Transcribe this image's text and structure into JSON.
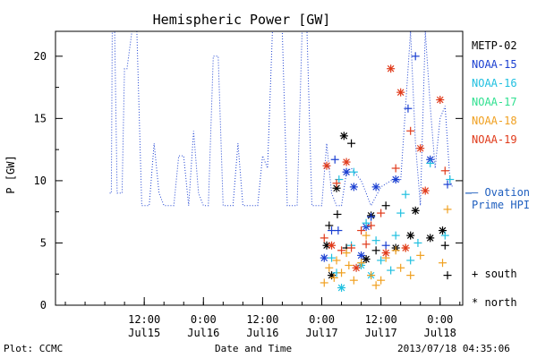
{
  "chart_data": {
    "type": "scatter",
    "title": "Hemispheric Power [GW]",
    "ylabel": "P [GW]",
    "xlabel": "Date and Time",
    "ylim": [
      0,
      22
    ],
    "xlim": [
      "2013-07-14T18:00",
      "2013-07-18T04:35"
    ],
    "y_ticks": [
      0,
      5,
      10,
      15,
      20
    ],
    "x_ticks": [
      {
        "time": "2013-07-15T12:00",
        "top": "12:00",
        "bottom": "Jul15"
      },
      {
        "time": "2013-07-16T00:00",
        "top": "0:00",
        "bottom": "Jul16"
      },
      {
        "time": "2013-07-16T12:00",
        "top": "12:00",
        "bottom": "Jul16"
      },
      {
        "time": "2013-07-17T00:00",
        "top": "0:00",
        "bottom": "Jul17"
      },
      {
        "time": "2013-07-17T12:00",
        "top": "12:00",
        "bottom": "Jul17"
      },
      {
        "time": "2013-07-18T00:00",
        "top": "0:00",
        "bottom": "Jul18"
      }
    ],
    "ovation_level": 9,
    "ovation_label_line1": "— Ovation",
    "ovation_label_line2": "Prime HPI",
    "series": [
      {
        "name": "METP-02",
        "color": "#000000",
        "type": "markers",
        "points": [
          [
            "2013-07-17T01:00",
            4.8,
            "star"
          ],
          [
            "2013-07-17T01:30",
            6.4,
            "plus"
          ],
          [
            "2013-07-17T02:00",
            2.4,
            "star"
          ],
          [
            "2013-07-17T03:00",
            9.4,
            "star"
          ],
          [
            "2013-07-17T03:10",
            7.3,
            "plus"
          ],
          [
            "2013-07-17T04:30",
            13.6,
            "star"
          ],
          [
            "2013-07-17T05:00",
            4.6,
            "plus"
          ],
          [
            "2013-07-17T06:00",
            13.0,
            "plus"
          ],
          [
            "2013-07-17T09:00",
            3.7,
            "star"
          ],
          [
            "2013-07-17T10:00",
            7.2,
            "star"
          ],
          [
            "2013-07-17T11:00",
            4.4,
            "plus"
          ],
          [
            "2013-07-17T13:00",
            8.0,
            "plus"
          ],
          [
            "2013-07-17T15:00",
            4.6,
            "star"
          ],
          [
            "2013-07-17T18:00",
            5.6,
            "star"
          ],
          [
            "2013-07-17T19:00",
            7.6,
            "star"
          ],
          [
            "2013-07-17T22:00",
            5.4,
            "star"
          ],
          [
            "2013-07-18T00:30",
            6.0,
            "star"
          ],
          [
            "2013-07-18T01:00",
            4.8,
            "plus"
          ],
          [
            "2013-07-18T01:30",
            2.4,
            "plus"
          ]
        ]
      },
      {
        "name": "NOAA-15",
        "color": "#1a3fd1",
        "type": "markers+dotted",
        "points": [
          [
            "2013-07-17T00:30",
            3.8,
            "star"
          ],
          [
            "2013-07-17T02:00",
            6.0,
            "plus"
          ],
          [
            "2013-07-17T02:40",
            11.7,
            "plus"
          ],
          [
            "2013-07-17T03:20",
            6.0,
            "plus"
          ],
          [
            "2013-07-17T05:00",
            10.7,
            "star"
          ],
          [
            "2013-07-17T06:30",
            9.5,
            "star"
          ],
          [
            "2013-07-17T08:00",
            4.0,
            "star"
          ],
          [
            "2013-07-17T09:00",
            6.3,
            "star"
          ],
          [
            "2013-07-17T10:00",
            7.1,
            "plus"
          ],
          [
            "2013-07-17T11:00",
            9.5,
            "star"
          ],
          [
            "2013-07-17T13:00",
            4.8,
            "plus"
          ],
          [
            "2013-07-17T15:00",
            10.1,
            "star"
          ],
          [
            "2013-07-17T17:30",
            15.8,
            "plus"
          ],
          [
            "2013-07-17T19:00",
            20.0,
            "plus"
          ],
          [
            "2013-07-17T22:00",
            11.7,
            "star"
          ],
          [
            "2013-07-18T01:30",
            9.7,
            "plus"
          ]
        ],
        "trace": [
          [
            "2013-07-15T05:00",
            9
          ],
          [
            "2013-07-15T05:20",
            9
          ],
          [
            "2013-07-15T05:30",
            22
          ],
          [
            "2013-07-15T06:00",
            22
          ],
          [
            "2013-07-15T06:30",
            9
          ],
          [
            "2013-07-15T07:30",
            9
          ],
          [
            "2013-07-15T08:00",
            19
          ],
          [
            "2013-07-15T08:30",
            19
          ],
          [
            "2013-07-15T09:30",
            22
          ],
          [
            "2013-07-15T10:30",
            22
          ],
          [
            "2013-07-15T11:30",
            8
          ],
          [
            "2013-07-15T13:00",
            8
          ],
          [
            "2013-07-15T14:00",
            13
          ],
          [
            "2013-07-15T15:00",
            9
          ],
          [
            "2013-07-15T16:00",
            8
          ],
          [
            "2013-07-15T18:00",
            8
          ],
          [
            "2013-07-15T19:00",
            12
          ],
          [
            "2013-07-15T20:00",
            12
          ],
          [
            "2013-07-15T21:00",
            8
          ],
          [
            "2013-07-15T22:00",
            14
          ],
          [
            "2013-07-15T23:00",
            9
          ],
          [
            "2013-07-16T00:00",
            8
          ],
          [
            "2013-07-16T01:00",
            8
          ],
          [
            "2013-07-16T02:00",
            20
          ],
          [
            "2013-07-16T03:00",
            20
          ],
          [
            "2013-07-16T04:00",
            8
          ],
          [
            "2013-07-16T06:00",
            8
          ],
          [
            "2013-07-16T07:00",
            13
          ],
          [
            "2013-07-16T08:00",
            8
          ],
          [
            "2013-07-16T11:00",
            8
          ],
          [
            "2013-07-16T12:00",
            12
          ],
          [
            "2013-07-16T13:00",
            11
          ],
          [
            "2013-07-16T14:00",
            22
          ],
          [
            "2013-07-16T16:00",
            22
          ],
          [
            "2013-07-16T17:00",
            8
          ],
          [
            "2013-07-16T19:00",
            8
          ],
          [
            "2013-07-16T20:00",
            22
          ],
          [
            "2013-07-16T21:00",
            22
          ],
          [
            "2013-07-16T22:00",
            8
          ],
          [
            "2013-07-17T00:00",
            8
          ],
          [
            "2013-07-17T01:00",
            13
          ],
          [
            "2013-07-17T02:00",
            9
          ],
          [
            "2013-07-17T03:00",
            8
          ],
          [
            "2013-07-17T04:00",
            8
          ],
          [
            "2013-07-17T05:00",
            10.7
          ],
          [
            "2013-07-17T06:00",
            11
          ],
          [
            "2013-07-17T08:00",
            10
          ],
          [
            "2013-07-17T10:00",
            8
          ],
          [
            "2013-07-17T12:00",
            9.5
          ],
          [
            "2013-07-17T14:00",
            10
          ],
          [
            "2013-07-17T16:00",
            10
          ],
          [
            "2013-07-17T17:00",
            16
          ],
          [
            "2013-07-17T18:00",
            22
          ],
          [
            "2013-07-17T19:00",
            13
          ],
          [
            "2013-07-17T20:00",
            8
          ],
          [
            "2013-07-17T21:00",
            22
          ],
          [
            "2013-07-17T22:00",
            16
          ],
          [
            "2013-07-17T23:00",
            11
          ],
          [
            "2013-07-18T00:00",
            15
          ],
          [
            "2013-07-18T01:00",
            16
          ],
          [
            "2013-07-18T02:00",
            10
          ],
          [
            "2013-07-18T02:30",
            9.5
          ]
        ]
      },
      {
        "name": "NOAA-16",
        "color": "#20c0e0",
        "type": "markers",
        "points": [
          [
            "2013-07-17T02:00",
            3.8,
            "plus"
          ],
          [
            "2013-07-17T03:00",
            2.6,
            "plus"
          ],
          [
            "2013-07-17T03:30",
            10.1,
            "plus"
          ],
          [
            "2013-07-17T04:00",
            1.4,
            "star"
          ],
          [
            "2013-07-17T06:00",
            4.8,
            "plus"
          ],
          [
            "2013-07-17T06:30",
            10.7,
            "plus"
          ],
          [
            "2013-07-17T08:00",
            3.2,
            "star"
          ],
          [
            "2013-07-17T09:00",
            6.6,
            "plus"
          ],
          [
            "2013-07-17T10:00",
            2.4,
            "star"
          ],
          [
            "2013-07-17T11:00",
            5.2,
            "plus"
          ],
          [
            "2013-07-17T12:00",
            3.6,
            "plus"
          ],
          [
            "2013-07-17T14:00",
            2.8,
            "plus"
          ],
          [
            "2013-07-17T15:00",
            5.6,
            "plus"
          ],
          [
            "2013-07-17T16:00",
            7.4,
            "plus"
          ],
          [
            "2013-07-17T17:00",
            8.9,
            "plus"
          ],
          [
            "2013-07-17T18:00",
            3.6,
            "plus"
          ],
          [
            "2013-07-17T19:30",
            5.0,
            "plus"
          ],
          [
            "2013-07-17T22:00",
            11.4,
            "plus"
          ],
          [
            "2013-07-18T01:00",
            5.6,
            "plus"
          ],
          [
            "2013-07-18T02:00",
            10.1,
            "plus"
          ]
        ]
      },
      {
        "name": "NOAA-17",
        "color": "#30e090",
        "type": "markers",
        "points": []
      },
      {
        "name": "NOAA-18",
        "color": "#f0a020",
        "type": "markers",
        "points": [
          [
            "2013-07-17T00:30",
            1.8,
            "plus"
          ],
          [
            "2013-07-17T01:30",
            3.0,
            "plus"
          ],
          [
            "2013-07-17T02:30",
            2.2,
            "plus"
          ],
          [
            "2013-07-17T03:00",
            3.6,
            "plus"
          ],
          [
            "2013-07-17T04:00",
            2.6,
            "plus"
          ],
          [
            "2013-07-17T05:00",
            4.2,
            "plus"
          ],
          [
            "2013-07-17T05:30",
            3.2,
            "plus"
          ],
          [
            "2013-07-17T06:30",
            2.0,
            "plus"
          ],
          [
            "2013-07-17T08:00",
            3.4,
            "plus"
          ],
          [
            "2013-07-17T09:00",
            5.6,
            "plus"
          ],
          [
            "2013-07-17T10:00",
            2.4,
            "plus"
          ],
          [
            "2013-07-17T11:00",
            1.6,
            "plus"
          ],
          [
            "2013-07-17T12:00",
            2.0,
            "plus"
          ],
          [
            "2013-07-17T13:00",
            3.8,
            "plus"
          ],
          [
            "2013-07-17T15:00",
            4.4,
            "plus"
          ],
          [
            "2013-07-17T16:00",
            3.0,
            "plus"
          ],
          [
            "2013-07-17T17:00",
            4.6,
            "plus"
          ],
          [
            "2013-07-17T18:00",
            2.4,
            "plus"
          ],
          [
            "2013-07-17T20:00",
            4.0,
            "plus"
          ],
          [
            "2013-07-18T00:30",
            3.4,
            "plus"
          ],
          [
            "2013-07-18T01:30",
            7.7,
            "plus"
          ]
        ]
      },
      {
        "name": "NOAA-19",
        "color": "#e03a1a",
        "type": "markers",
        "points": [
          [
            "2013-07-17T00:30",
            5.4,
            "plus"
          ],
          [
            "2013-07-17T01:00",
            11.2,
            "star"
          ],
          [
            "2013-07-17T02:00",
            4.8,
            "star"
          ],
          [
            "2013-07-17T03:00",
            9.8,
            "plus"
          ],
          [
            "2013-07-17T04:00",
            4.4,
            "plus"
          ],
          [
            "2013-07-17T05:00",
            11.5,
            "star"
          ],
          [
            "2013-07-17T06:00",
            4.6,
            "plus"
          ],
          [
            "2013-07-17T07:00",
            3.0,
            "star"
          ],
          [
            "2013-07-17T08:00",
            6.0,
            "plus"
          ],
          [
            "2013-07-17T09:00",
            4.9,
            "plus"
          ],
          [
            "2013-07-17T10:00",
            6.4,
            "plus"
          ],
          [
            "2013-07-17T12:00",
            7.4,
            "plus"
          ],
          [
            "2013-07-17T13:00",
            4.2,
            "star"
          ],
          [
            "2013-07-17T14:00",
            19.0,
            "star"
          ],
          [
            "2013-07-17T15:00",
            11.0,
            "plus"
          ],
          [
            "2013-07-17T16:00",
            17.1,
            "star"
          ],
          [
            "2013-07-17T17:00",
            4.6,
            "star"
          ],
          [
            "2013-07-17T18:00",
            14.0,
            "plus"
          ],
          [
            "2013-07-17T20:00",
            12.6,
            "star"
          ],
          [
            "2013-07-17T21:00",
            9.2,
            "star"
          ],
          [
            "2013-07-18T00:00",
            16.5,
            "star"
          ],
          [
            "2013-07-18T01:00",
            10.8,
            "plus"
          ]
        ]
      }
    ],
    "symbol_legend": [
      {
        "symbol": "+",
        "text": "south"
      },
      {
        "symbol": "*",
        "text": "north"
      }
    ]
  },
  "footer": {
    "left": "Plot: CCMC",
    "right": "2013/07/18 04:35:06"
  }
}
